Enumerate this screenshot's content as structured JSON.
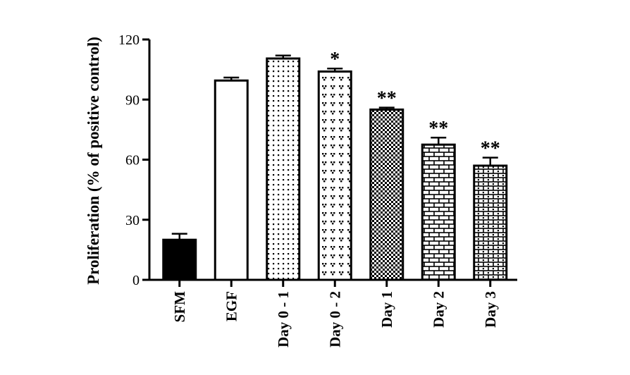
{
  "chart_data": {
    "type": "bar",
    "title": "",
    "xlabel": "",
    "ylabel": "Proliferation (% of positive control)",
    "ylim": [
      0,
      120
    ],
    "yticks": [
      0,
      30,
      60,
      90,
      120
    ],
    "grid": false,
    "legend": "none",
    "categories": [
      "SFM",
      "EGF",
      "Day 0 - 1",
      "Day 0 - 2",
      "Day 1",
      "Day 2",
      "Day 3"
    ],
    "values": [
      20,
      99.5,
      110.5,
      104,
      85,
      67.5,
      57
    ],
    "errors": [
      3,
      1.5,
      1.5,
      1.5,
      1,
      3.5,
      4
    ],
    "annotations": [
      "",
      "",
      "",
      "*",
      "**",
      "**",
      "**"
    ],
    "fill_patterns": [
      "solid-black",
      "white",
      "small-dots",
      "triad-dots",
      "checker",
      "brick",
      "brick-dots"
    ]
  }
}
